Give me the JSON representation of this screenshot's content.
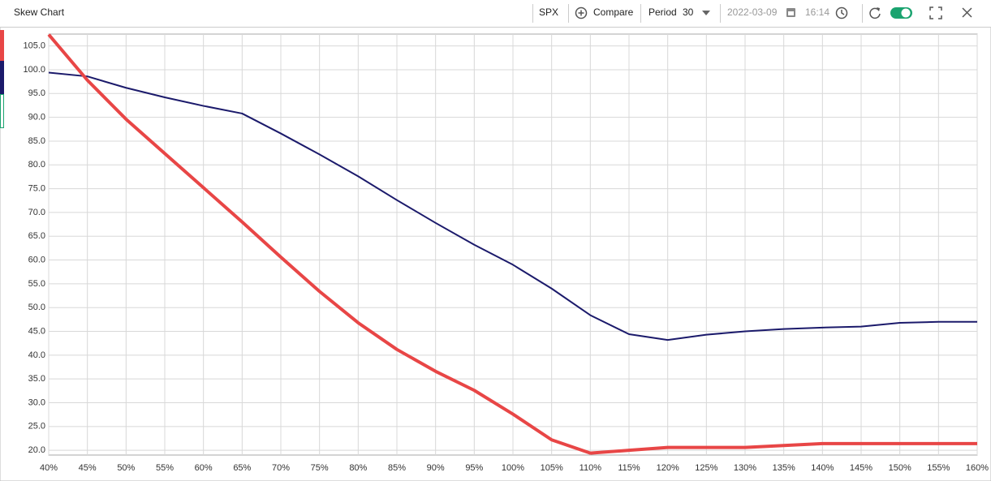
{
  "toolbar": {
    "title": "Skew Chart",
    "symbol": "SPX",
    "compare": "Compare",
    "period_label": "Period",
    "period_value": "30",
    "date": "2022-03-09",
    "time": "16:14"
  },
  "chart_data": {
    "type": "line",
    "categories": [
      "40%",
      "45%",
      "50%",
      "55%",
      "60%",
      "65%",
      "70%",
      "75%",
      "80%",
      "85%",
      "90%",
      "95%",
      "100%",
      "105%",
      "110%",
      "115%",
      "120%",
      "125%",
      "130%",
      "135%",
      "140%",
      "145%",
      "150%",
      "155%",
      "160%"
    ],
    "series": [
      {
        "color": "#1b1a6b",
        "width": 2,
        "values": [
          99.4,
          98.6,
          96.2,
          94.2,
          92.4,
          90.8,
          86.6,
          82.2,
          77.6,
          72.6,
          67.8,
          63.2,
          59.0,
          54.0,
          48.4,
          44.4,
          43.2,
          44.3,
          45.0,
          45.5,
          45.8,
          46.0,
          46.8,
          47.0,
          47.0
        ]
      },
      {
        "color": "#e84646",
        "width": 4,
        "values": [
          107.4,
          97.8,
          89.6,
          82.4,
          75.2,
          68.0,
          60.6,
          53.4,
          46.8,
          41.2,
          36.6,
          32.6,
          27.6,
          22.2,
          19.4,
          20.0,
          20.6,
          20.6,
          20.6,
          21.0,
          21.4,
          21.4,
          21.4,
          21.4,
          21.4
        ]
      }
    ],
    "ylim": [
      19,
      107.5
    ],
    "yticks": [
      {
        "value": 20,
        "label": "20.0"
      },
      {
        "value": 25,
        "label": "25.0"
      },
      {
        "value": 30,
        "label": "30.0"
      },
      {
        "value": 35,
        "label": "35.0"
      },
      {
        "value": 40,
        "label": "40.0"
      },
      {
        "value": 45,
        "label": "45.0"
      },
      {
        "value": 50,
        "label": "50.0"
      },
      {
        "value": 55,
        "label": "55.0"
      },
      {
        "value": 60,
        "label": "60.0"
      },
      {
        "value": 65,
        "label": "65.0"
      },
      {
        "value": 70,
        "label": "70.0"
      },
      {
        "value": 75,
        "label": "75.0"
      },
      {
        "value": 80,
        "label": "80.0"
      },
      {
        "value": 85,
        "label": "85.0"
      },
      {
        "value": 90,
        "label": "90.0"
      },
      {
        "value": 95,
        "label": "95.0"
      },
      {
        "value": 100,
        "label": "100.0"
      },
      {
        "value": 105,
        "label": "105.0"
      }
    ],
    "grid": true
  }
}
